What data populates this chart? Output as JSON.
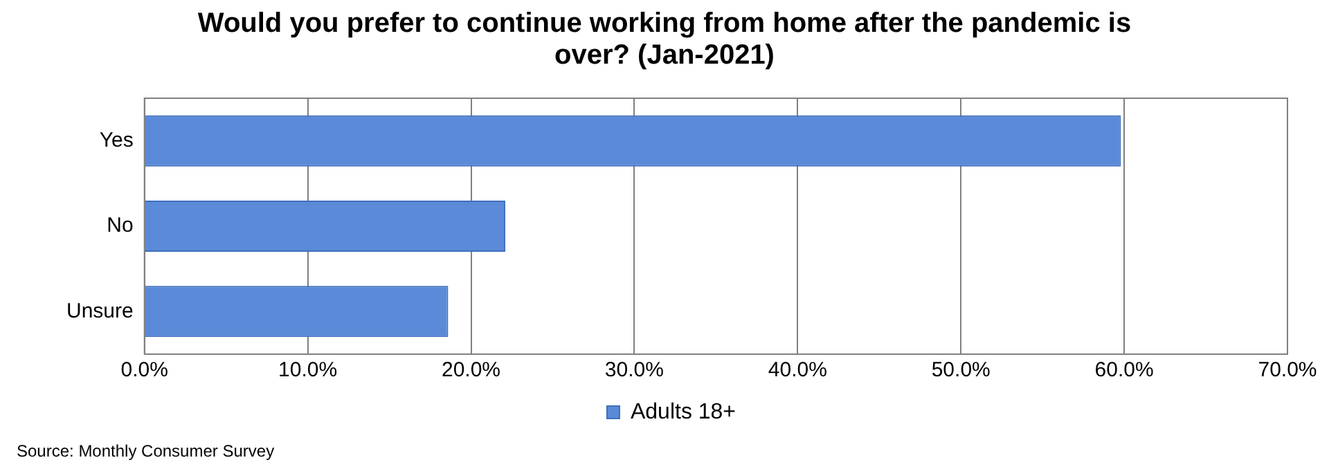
{
  "chart_data": {
    "type": "bar",
    "orientation": "horizontal",
    "title": "Would you prefer to continue working from home after the pandemic is over? (Jan-2021)",
    "categories": [
      "Yes",
      "No",
      "Unsure"
    ],
    "series": [
      {
        "name": "Adults 18+",
        "color": "#5b8ad8",
        "values": [
          59.8,
          22.1,
          18.6
        ]
      }
    ],
    "xlim": [
      0,
      70
    ],
    "xticks": [
      {
        "value": 0,
        "label": "0.0%"
      },
      {
        "value": 10,
        "label": "10.0%"
      },
      {
        "value": 20,
        "label": "20.0%"
      },
      {
        "value": 30,
        "label": "30.0%"
      },
      {
        "value": 40,
        "label": "40.0%"
      },
      {
        "value": 50,
        "label": "50.0%"
      },
      {
        "value": 60,
        "label": "60.0%"
      },
      {
        "value": 70,
        "label": "70.0%"
      }
    ],
    "grid": "x",
    "legend": "bottom",
    "annotations": [
      "Source: Monthly Consumer Survey"
    ]
  }
}
